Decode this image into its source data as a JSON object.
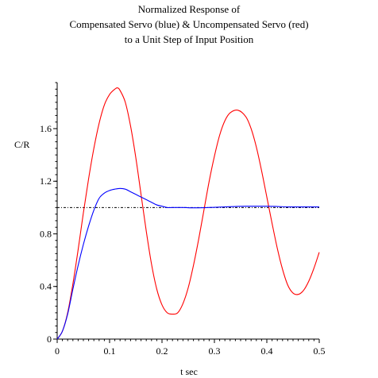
{
  "chart_data": {
    "type": "line",
    "title": [
      "Normalized Response of",
      "Compensated Servo (blue) & Uncompensated Servo (red)",
      "to a Unit Step of Input  Position"
    ],
    "xlabel": "t sec",
    "ylabel": "C/R",
    "xlim": [
      0,
      0.5
    ],
    "ylim": [
      0,
      1.95
    ],
    "xticks": [
      0,
      0.1,
      0.2,
      0.3,
      0.4,
      0.5
    ],
    "xtick_labels": [
      "0",
      "0.1",
      "0.2",
      "0.3",
      "0.4",
      "0.5"
    ],
    "yticks": [
      0,
      0.4,
      0.8,
      1.2,
      1.6
    ],
    "ytick_labels": [
      "0",
      "0.4",
      "0.8",
      "1.2",
      "1.6"
    ],
    "grid": false,
    "series": [
      {
        "color": "#ff0000",
        "x": [
          0,
          0.01,
          0.02,
          0.03,
          0.04,
          0.05,
          0.06,
          0.07,
          0.08,
          0.09,
          0.1,
          0.11,
          0.115,
          0.12,
          0.13,
          0.14,
          0.15,
          0.16,
          0.17,
          0.18,
          0.19,
          0.2,
          0.21,
          0.22,
          0.23,
          0.24,
          0.25,
          0.26,
          0.27,
          0.28,
          0.29,
          0.3,
          0.31,
          0.32,
          0.33,
          0.345,
          0.36,
          0.37,
          0.38,
          0.39,
          0.4,
          0.41,
          0.42,
          0.43,
          0.44,
          0.45,
          0.46,
          0.47,
          0.48,
          0.49,
          0.5
        ],
        "y": [
          0,
          0.06,
          0.2,
          0.42,
          0.68,
          0.96,
          1.22,
          1.45,
          1.64,
          1.78,
          1.86,
          1.9,
          1.91,
          1.89,
          1.8,
          1.62,
          1.38,
          1.1,
          0.82,
          0.57,
          0.38,
          0.26,
          0.2,
          0.19,
          0.2,
          0.27,
          0.39,
          0.56,
          0.76,
          0.98,
          1.2,
          1.39,
          1.55,
          1.66,
          1.72,
          1.74,
          1.69,
          1.6,
          1.46,
          1.28,
          1.08,
          0.88,
          0.69,
          0.53,
          0.41,
          0.35,
          0.34,
          0.37,
          0.44,
          0.54,
          0.66
        ]
      },
      {
        "color": "#0000ff",
        "x": [
          0,
          0.01,
          0.02,
          0.03,
          0.04,
          0.05,
          0.06,
          0.07,
          0.08,
          0.09,
          0.1,
          0.11,
          0.12,
          0.13,
          0.14,
          0.15,
          0.16,
          0.17,
          0.18,
          0.19,
          0.2,
          0.21,
          0.22,
          0.24,
          0.26,
          0.28,
          0.3,
          0.32,
          0.34,
          0.36,
          0.38,
          0.4,
          0.42,
          0.44,
          0.46,
          0.48,
          0.5
        ],
        "y": [
          0,
          0.06,
          0.19,
          0.38,
          0.56,
          0.72,
          0.86,
          0.98,
          1.07,
          1.11,
          1.13,
          1.14,
          1.145,
          1.14,
          1.12,
          1.1,
          1.08,
          1.06,
          1.04,
          1.02,
          1.01,
          1.0,
          1.0,
          1.0,
          0.998,
          0.999,
          1.002,
          1.005,
          1.008,
          1.01,
          1.01,
          1.01,
          1.008,
          1.005,
          1.005,
          1.005,
          1.005
        ]
      }
    ],
    "reference_line": {
      "y": 1.0,
      "style": "dash-dot",
      "color": "#000000"
    }
  }
}
